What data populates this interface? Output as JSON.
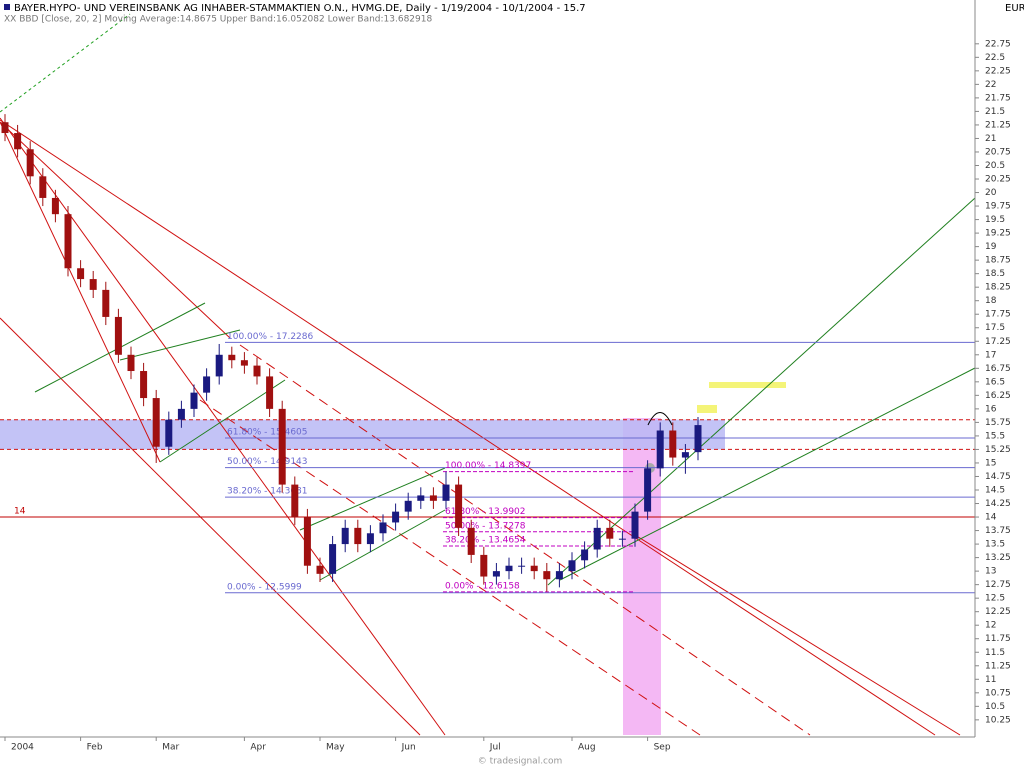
{
  "chart_data": {
    "type": "candlestick",
    "title": "BAYER.HYPO- UND VEREINSBANK AG INHABER-STAMMAKTIEN O.N., HVMG.DE, Daily - 1/19/2004 - 10/1/2004 - 15.7",
    "subtitle": "XX BBD [Close, 20, 2] Moving Average:14.8675 Upper Band:16.052082 Lower Band:13.682918",
    "currency": "EUR",
    "watermark": "© tradesignal.com",
    "categories": [
      "2004",
      null,
      null,
      null,
      null,
      null,
      "Feb",
      null,
      null,
      null,
      null,
      null,
      "Mar",
      null,
      null,
      null,
      null,
      null,
      null,
      "Apr",
      null,
      null,
      null,
      null,
      null,
      "May",
      null,
      null,
      null,
      null,
      null,
      "Jun",
      null,
      null,
      null,
      null,
      null,
      null,
      "Jul",
      null,
      null,
      null,
      null,
      null,
      null,
      "Aug",
      null,
      null,
      null,
      null,
      null,
      "Sep",
      null,
      null,
      null,
      null
    ],
    "open": [
      21.3,
      21.1,
      20.8,
      20.3,
      19.9,
      19.6,
      18.6,
      18.4,
      18.2,
      17.7,
      17.0,
      16.7,
      16.2,
      15.3,
      15.8,
      16.0,
      16.3,
      16.6,
      17.0,
      16.9,
      16.8,
      16.6,
      16.0,
      14.6,
      14.0,
      13.1,
      12.95,
      13.5,
      13.8,
      13.5,
      13.7,
      13.9,
      14.1,
      14.3,
      14.4,
      14.3,
      14.6,
      13.8,
      13.3,
      12.9,
      13.0,
      13.1,
      13.1,
      13.0,
      12.85,
      13.0,
      13.2,
      13.4,
      13.8,
      13.6,
      13.6,
      14.1,
      14.9,
      15.6,
      15.1,
      15.2
    ],
    "high": [
      21.45,
      21.25,
      20.95,
      20.45,
      20.05,
      19.75,
      18.75,
      18.55,
      18.35,
      17.85,
      17.15,
      16.85,
      16.35,
      15.95,
      16.15,
      16.45,
      16.75,
      17.2,
      17.15,
      17.05,
      16.95,
      16.75,
      16.15,
      14.75,
      14.15,
      13.25,
      13.65,
      13.95,
      13.95,
      13.85,
      14.05,
      14.25,
      14.45,
      14.55,
      14.55,
      14.84,
      14.75,
      13.95,
      13.45,
      13.15,
      13.25,
      13.25,
      13.25,
      13.15,
      13.15,
      13.35,
      13.55,
      13.95,
      13.95,
      13.75,
      14.25,
      15.05,
      15.75,
      15.75,
      15.35,
      15.85
    ],
    "low": [
      20.95,
      20.65,
      20.15,
      19.75,
      19.45,
      18.45,
      18.25,
      18.05,
      17.55,
      16.85,
      16.55,
      16.05,
      15.0,
      15.15,
      15.65,
      15.85,
      16.15,
      16.45,
      16.75,
      16.65,
      16.45,
      15.85,
      14.45,
      13.85,
      12.95,
      12.8,
      12.8,
      13.35,
      13.35,
      13.35,
      13.55,
      13.75,
      13.95,
      14.15,
      14.15,
      14.15,
      13.65,
      13.15,
      12.75,
      12.75,
      12.85,
      12.95,
      12.85,
      12.62,
      12.7,
      12.85,
      13.05,
      13.25,
      13.45,
      13.45,
      13.45,
      13.95,
      14.75,
      14.95,
      14.8,
      15.05
    ],
    "close": [
      21.1,
      20.8,
      20.3,
      19.9,
      19.6,
      18.6,
      18.4,
      18.2,
      17.7,
      17.0,
      16.7,
      16.2,
      15.3,
      15.8,
      16.0,
      16.3,
      16.6,
      17.0,
      16.9,
      16.8,
      16.6,
      16.0,
      14.6,
      14.0,
      13.1,
      12.95,
      13.5,
      13.8,
      13.5,
      13.7,
      13.9,
      14.1,
      14.3,
      14.4,
      14.3,
      14.6,
      13.8,
      13.3,
      12.9,
      13.0,
      13.1,
      13.1,
      13.0,
      12.85,
      13.0,
      13.2,
      13.4,
      13.8,
      13.6,
      13.6,
      14.1,
      14.9,
      15.6,
      15.1,
      15.2,
      15.7
    ],
    "up_color": "#1a1a80",
    "down_color": "#a01010",
    "ylim": [
      9.97,
      23.56
    ],
    "yticks": [
      10.25,
      10.5,
      10.75,
      11,
      11.25,
      11.5,
      11.75,
      12,
      12.25,
      12.5,
      12.75,
      13,
      13.25,
      13.5,
      13.75,
      14,
      14.25,
      14.5,
      14.75,
      15,
      15.25,
      15.5,
      15.75,
      16,
      16.25,
      16.5,
      16.75,
      17,
      17.25,
      17.5,
      17.75,
      18,
      18.25,
      18.5,
      18.75,
      19,
      19.25,
      19.5,
      19.75,
      20,
      20.25,
      20.5,
      20.75,
      21,
      21.25,
      21.5,
      21.75,
      22,
      22.25,
      22.5,
      22.75
    ],
    "support_line": {
      "value": 14,
      "label": "14",
      "color": "#c00000"
    },
    "zone": {
      "values": [
        15.25,
        15.8
      ],
      "color": "#b8b8f4"
    },
    "fib_retracement_1": {
      "color": "#6a6ad0",
      "levels": [
        {
          "value": 17.2286,
          "label": "100.00% - 17.2286"
        },
        {
          "value": 15.4605,
          "label": "61.80% - 15.4605"
        },
        {
          "value": 14.9143,
          "label": "50.00% - 14.9143"
        },
        {
          "value": 14.3681,
          "label": "38.20% - 14.3681"
        },
        {
          "value": 12.5999,
          "label": "0.00% - 12.5999"
        }
      ]
    },
    "fib_retracement_2": {
      "color": "#c000c0",
      "levels": [
        {
          "value": 14.8397,
          "label": "100.00% - 14.8397"
        },
        {
          "value": 13.9902,
          "label": "61.80% - 13.9902"
        },
        {
          "value": 13.7278,
          "label": "50.00% - 13.7278"
        },
        {
          "value": 13.4654,
          "label": "38.20% - 13.4654"
        },
        {
          "value": 12.6158,
          "label": "0.00% - 12.6158"
        }
      ]
    }
  }
}
